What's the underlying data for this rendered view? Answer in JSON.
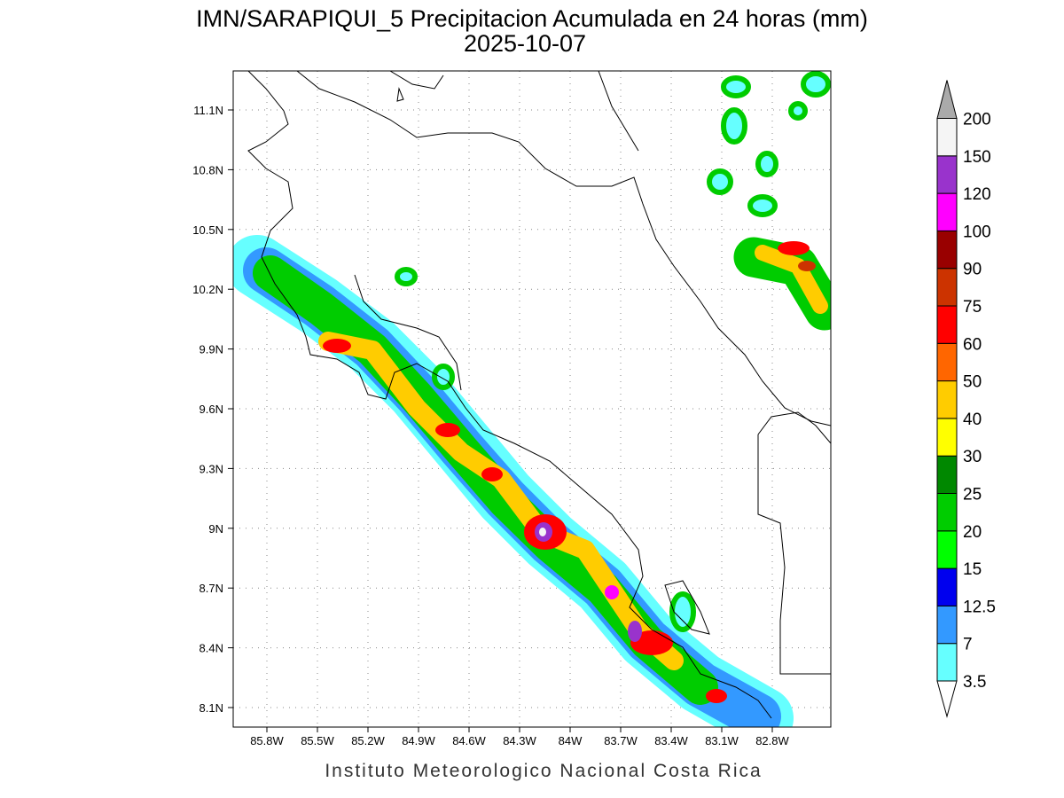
{
  "title": "IMN/SARAPIQUI_5 Precipitacion Acumulada en 24 horas (mm)",
  "subtitle": "2025-10-07",
  "footer": "Instituto Meteorologico Nacional Costa Rica",
  "lon_ticks": [
    "85.8W",
    "85.5W",
    "85.2W",
    "84.9W",
    "84.6W",
    "84.3W",
    "84W",
    "83.7W",
    "83.4W",
    "83.1W",
    "82.8W"
  ],
  "lat_ticks": [
    "11.1N",
    "10.8N",
    "10.5N",
    "10.2N",
    "9.9N",
    "9.6N",
    "9.3N",
    "9N",
    "8.7N",
    "8.4N",
    "8.1N"
  ],
  "colorbar": {
    "labels": [
      "3.5",
      "7",
      "12.5",
      "15",
      "20",
      "25",
      "30",
      "40",
      "50",
      "60",
      "75",
      "90",
      "100",
      "120",
      "150",
      "200"
    ],
    "colors": [
      "#66ffff",
      "#3399ff",
      "#0000ee",
      "#00ff00",
      "#00cc00",
      "#008800",
      "#ffff00",
      "#ffcc00",
      "#ff6600",
      "#ff0000",
      "#cc3300",
      "#990000",
      "#ff00ff",
      "#9933cc",
      "#f5f5f5"
    ],
    "under_color": "#ffffff",
    "over_color": "#aaaaaa"
  }
}
